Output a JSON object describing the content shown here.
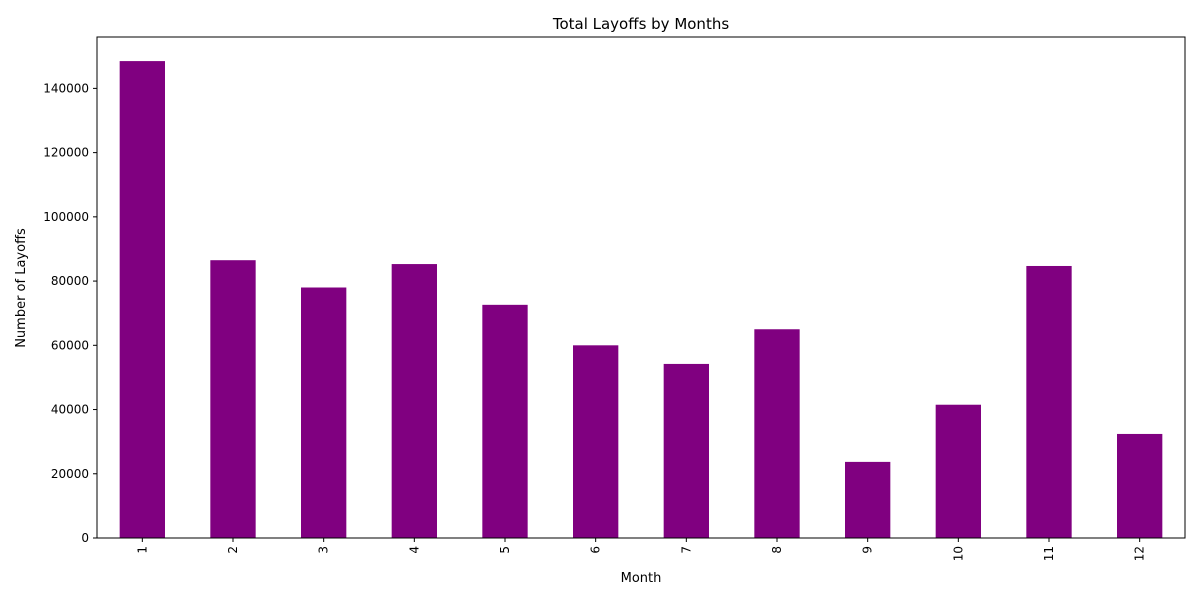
{
  "chart_data": {
    "type": "bar",
    "title": "Total Layoffs by Months",
    "xlabel": "Month",
    "ylabel": "Number of Layoffs",
    "categories": [
      "1",
      "2",
      "3",
      "4",
      "5",
      "6",
      "7",
      "8",
      "9",
      "10",
      "11",
      "12"
    ],
    "values": [
      148500,
      86500,
      78000,
      85300,
      72600,
      60000,
      54200,
      65000,
      23700,
      41500,
      84700,
      32400
    ],
    "ylim": [
      0,
      156000
    ],
    "yticks": [
      0,
      20000,
      40000,
      60000,
      80000,
      100000,
      120000,
      140000
    ],
    "ytick_labels": [
      "0",
      "20000",
      "40000",
      "60000",
      "80000",
      "100000",
      "120000",
      "140000"
    ],
    "bar_color": "#800080",
    "grid": false,
    "xtick_rotation": "vertical"
  }
}
